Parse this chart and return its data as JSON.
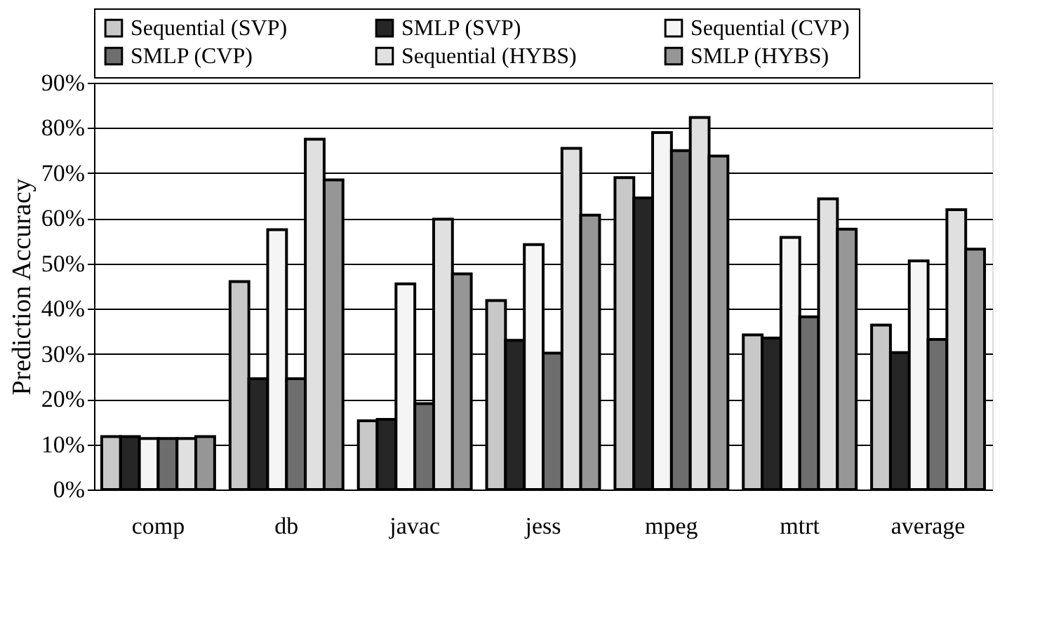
{
  "chart_data": {
    "type": "bar",
    "ylabel": "Prediction Accuracy",
    "categories": [
      "comp",
      "db",
      "javac",
      "jess",
      "mpeg",
      "mtrt",
      "average"
    ],
    "series": [
      {
        "name": "Sequential (SVP)",
        "color": "#c8c8c8",
        "values": [
          11.7,
          46,
          15.2,
          41.8,
          69,
          34.2,
          36.4
        ]
      },
      {
        "name": "SMLP (SVP)",
        "color": "#262626",
        "values": [
          11.7,
          24.5,
          15.5,
          33,
          64.5,
          33.5,
          30.3
        ]
      },
      {
        "name": "Sequential (CVP)",
        "color": "#f5f5f5",
        "values": [
          11.3,
          57.5,
          45.5,
          54.2,
          79,
          55.8,
          50.6
        ]
      },
      {
        "name": "SMLP (CVP)",
        "color": "#6e6e6e",
        "values": [
          11.3,
          24.5,
          19,
          30.2,
          75,
          38.2,
          33.2
        ]
      },
      {
        "name": "Sequential (HYBS)",
        "color": "#e0e0e0",
        "values": [
          11.3,
          77.5,
          59.8,
          75.5,
          82.3,
          64.3,
          61.9
        ]
      },
      {
        "name": "SMLP (HYBS)",
        "color": "#969696",
        "values": [
          11.7,
          68.5,
          47.7,
          60.7,
          73.8,
          57.6,
          53.2
        ]
      }
    ],
    "ylim": [
      0,
      90
    ],
    "yticks": [
      {
        "value": 0,
        "label": "0%"
      },
      {
        "value": 10,
        "label": "10%"
      },
      {
        "value": 20,
        "label": "20%"
      },
      {
        "value": 30,
        "label": "30%"
      },
      {
        "value": 40,
        "label": "40%"
      },
      {
        "value": 50,
        "label": "50%"
      },
      {
        "value": 60,
        "label": "60%"
      },
      {
        "value": 70,
        "label": "70%"
      },
      {
        "value": 80,
        "label": "80%"
      },
      {
        "value": 90,
        "label": "90%"
      }
    ],
    "grid": "y",
    "legend": "top"
  }
}
